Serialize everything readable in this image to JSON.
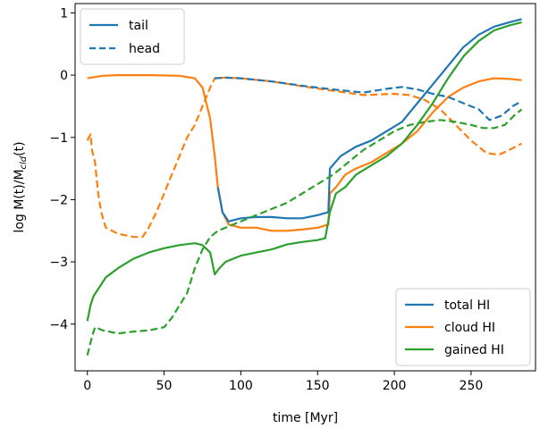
{
  "chart_data": {
    "type": "line",
    "xlabel": "time [Myr]",
    "ylabel_main": "log M(t)/M",
    "ylabel_sub": "cld",
    "ylabel_tail": "(t)",
    "xlim": [
      -8,
      292
    ],
    "ylim": [
      -4.75,
      1.15
    ],
    "x_ticks": [
      0,
      50,
      100,
      150,
      200,
      250
    ],
    "x_tick_labels": [
      "0",
      "50",
      "100",
      "150",
      "200",
      "250"
    ],
    "y_ticks": [
      1,
      0,
      -1,
      -2,
      -3,
      -4
    ],
    "y_tick_labels": [
      "1",
      "0",
      "−1",
      "−2",
      "−3",
      "−4"
    ],
    "grid": false,
    "colors": {
      "total": "#1f77b4",
      "cloud": "#ff7f0e",
      "gained": "#2ca02c"
    },
    "style_legend": {
      "placement": "upper-left",
      "entries": [
        {
          "label": "tail",
          "dash": "solid",
          "color": "#1f77b4"
        },
        {
          "label": "head",
          "dash": "dashed",
          "color": "#1f77b4"
        }
      ]
    },
    "color_legend": {
      "placement": "lower-right",
      "entries": [
        {
          "label": "total HI",
          "color": "#1f77b4"
        },
        {
          "label": "cloud HI",
          "color": "#ff7f0e"
        },
        {
          "label": "gained HI",
          "color": "#2ca02c"
        }
      ]
    },
    "series": [
      {
        "key": "cloud-head",
        "color": "#ff7f0e",
        "dash": "dashed",
        "points": [
          [
            0,
            -1.05
          ],
          [
            2,
            -0.95
          ],
          [
            3,
            -1.2
          ],
          [
            5,
            -1.4
          ],
          [
            7,
            -1.9
          ],
          [
            9,
            -2.2
          ],
          [
            12,
            -2.45
          ],
          [
            20,
            -2.55
          ],
          [
            30,
            -2.6
          ],
          [
            36,
            -2.6
          ],
          [
            40,
            -2.45
          ],
          [
            45,
            -2.2
          ],
          [
            50,
            -1.9
          ],
          [
            55,
            -1.6
          ],
          [
            60,
            -1.3
          ],
          [
            65,
            -1.0
          ],
          [
            70,
            -0.8
          ],
          [
            75,
            -0.5
          ],
          [
            80,
            -0.2
          ],
          [
            83,
            -0.05
          ],
          [
            90,
            -0.04
          ],
          [
            100,
            -0.05
          ],
          [
            120,
            -0.1
          ],
          [
            140,
            -0.18
          ],
          [
            160,
            -0.25
          ],
          [
            180,
            -0.32
          ],
          [
            200,
            -0.3
          ],
          [
            210,
            -0.32
          ],
          [
            220,
            -0.4
          ],
          [
            230,
            -0.55
          ],
          [
            240,
            -0.8
          ],
          [
            250,
            -1.05
          ],
          [
            260,
            -1.25
          ],
          [
            268,
            -1.28
          ],
          [
            275,
            -1.2
          ],
          [
            283,
            -1.1
          ]
        ]
      },
      {
        "key": "cloud-tail",
        "color": "#ff7f0e",
        "dash": "solid",
        "points": [
          [
            0,
            -0.05
          ],
          [
            10,
            -0.01
          ],
          [
            20,
            0.0
          ],
          [
            40,
            0.0
          ],
          [
            60,
            -0.01
          ],
          [
            70,
            -0.05
          ],
          [
            75,
            -0.2
          ],
          [
            80,
            -0.7
          ],
          [
            83,
            -1.3
          ],
          [
            85,
            -1.8
          ],
          [
            88,
            -2.2
          ],
          [
            92,
            -2.4
          ],
          [
            100,
            -2.45
          ],
          [
            110,
            -2.45
          ],
          [
            120,
            -2.5
          ],
          [
            130,
            -2.5
          ],
          [
            140,
            -2.48
          ],
          [
            150,
            -2.45
          ],
          [
            157,
            -2.4
          ],
          [
            158,
            -1.9
          ],
          [
            162,
            -1.8
          ],
          [
            168,
            -1.6
          ],
          [
            175,
            -1.5
          ],
          [
            185,
            -1.4
          ],
          [
            195,
            -1.25
          ],
          [
            205,
            -1.1
          ],
          [
            215,
            -0.9
          ],
          [
            225,
            -0.6
          ],
          [
            235,
            -0.35
          ],
          [
            245,
            -0.2
          ],
          [
            255,
            -0.1
          ],
          [
            265,
            -0.05
          ],
          [
            275,
            -0.06
          ],
          [
            283,
            -0.08
          ]
        ]
      },
      {
        "key": "total-head",
        "color": "#1f77b4",
        "dash": "dashed",
        "points": [
          [
            83,
            -0.05
          ],
          [
            90,
            -0.04
          ],
          [
            100,
            -0.05
          ],
          [
            120,
            -0.1
          ],
          [
            140,
            -0.17
          ],
          [
            160,
            -0.23
          ],
          [
            180,
            -0.28
          ],
          [
            195,
            -0.22
          ],
          [
            205,
            -0.19
          ],
          [
            215,
            -0.23
          ],
          [
            225,
            -0.3
          ],
          [
            235,
            -0.35
          ],
          [
            245,
            -0.45
          ],
          [
            255,
            -0.55
          ],
          [
            262,
            -0.72
          ],
          [
            270,
            -0.65
          ],
          [
            277,
            -0.5
          ],
          [
            283,
            -0.42
          ]
        ]
      },
      {
        "key": "total-tail",
        "color": "#1f77b4",
        "dash": "solid",
        "points": [
          [
            85,
            -1.8
          ],
          [
            88,
            -2.2
          ],
          [
            92,
            -2.35
          ],
          [
            100,
            -2.3
          ],
          [
            110,
            -2.28
          ],
          [
            120,
            -2.28
          ],
          [
            130,
            -2.3
          ],
          [
            140,
            -2.3
          ],
          [
            150,
            -2.25
          ],
          [
            157,
            -2.2
          ],
          [
            158,
            -1.5
          ],
          [
            165,
            -1.3
          ],
          [
            175,
            -1.15
          ],
          [
            185,
            -1.05
          ],
          [
            195,
            -0.9
          ],
          [
            205,
            -0.75
          ],
          [
            215,
            -0.45
          ],
          [
            225,
            -0.15
          ],
          [
            235,
            0.15
          ],
          [
            245,
            0.45
          ],
          [
            255,
            0.65
          ],
          [
            265,
            0.78
          ],
          [
            275,
            0.85
          ],
          [
            283,
            0.9
          ]
        ]
      },
      {
        "key": "gained-head",
        "color": "#2ca02c",
        "dash": "dashed",
        "points": [
          [
            0,
            -4.5
          ],
          [
            3,
            -4.2
          ],
          [
            5,
            -4.05
          ],
          [
            10,
            -4.1
          ],
          [
            20,
            -4.15
          ],
          [
            30,
            -4.12
          ],
          [
            40,
            -4.1
          ],
          [
            50,
            -4.05
          ],
          [
            55,
            -3.9
          ],
          [
            60,
            -3.7
          ],
          [
            65,
            -3.5
          ],
          [
            70,
            -3.1
          ],
          [
            75,
            -2.8
          ],
          [
            80,
            -2.6
          ],
          [
            85,
            -2.5
          ],
          [
            90,
            -2.45
          ],
          [
            100,
            -2.35
          ],
          [
            110,
            -2.25
          ],
          [
            120,
            -2.15
          ],
          [
            130,
            -2.05
          ],
          [
            140,
            -1.9
          ],
          [
            150,
            -1.75
          ],
          [
            160,
            -1.6
          ],
          [
            170,
            -1.4
          ],
          [
            180,
            -1.2
          ],
          [
            190,
            -1.05
          ],
          [
            200,
            -0.9
          ],
          [
            210,
            -0.8
          ],
          [
            220,
            -0.75
          ],
          [
            230,
            -0.72
          ],
          [
            240,
            -0.75
          ],
          [
            250,
            -0.8
          ],
          [
            258,
            -0.85
          ],
          [
            265,
            -0.85
          ],
          [
            272,
            -0.8
          ],
          [
            278,
            -0.65
          ],
          [
            283,
            -0.55
          ]
        ]
      },
      {
        "key": "gained-tail",
        "color": "#2ca02c",
        "dash": "solid",
        "points": [
          [
            0,
            -3.95
          ],
          [
            2,
            -3.7
          ],
          [
            4,
            -3.55
          ],
          [
            8,
            -3.4
          ],
          [
            12,
            -3.25
          ],
          [
            20,
            -3.1
          ],
          [
            30,
            -2.95
          ],
          [
            40,
            -2.85
          ],
          [
            50,
            -2.78
          ],
          [
            60,
            -2.73
          ],
          [
            70,
            -2.7
          ],
          [
            75,
            -2.73
          ],
          [
            80,
            -2.85
          ],
          [
            83,
            -3.2
          ],
          [
            86,
            -3.1
          ],
          [
            90,
            -3.0
          ],
          [
            100,
            -2.9
          ],
          [
            110,
            -2.85
          ],
          [
            120,
            -2.8
          ],
          [
            130,
            -2.72
          ],
          [
            140,
            -2.68
          ],
          [
            150,
            -2.65
          ],
          [
            155,
            -2.62
          ],
          [
            158,
            -2.2
          ],
          [
            162,
            -1.9
          ],
          [
            168,
            -1.8
          ],
          [
            175,
            -1.6
          ],
          [
            185,
            -1.45
          ],
          [
            195,
            -1.3
          ],
          [
            205,
            -1.1
          ],
          [
            215,
            -0.8
          ],
          [
            225,
            -0.45
          ],
          [
            235,
            -0.05
          ],
          [
            245,
            0.3
          ],
          [
            255,
            0.55
          ],
          [
            265,
            0.72
          ],
          [
            275,
            0.8
          ],
          [
            283,
            0.85
          ]
        ]
      }
    ]
  }
}
